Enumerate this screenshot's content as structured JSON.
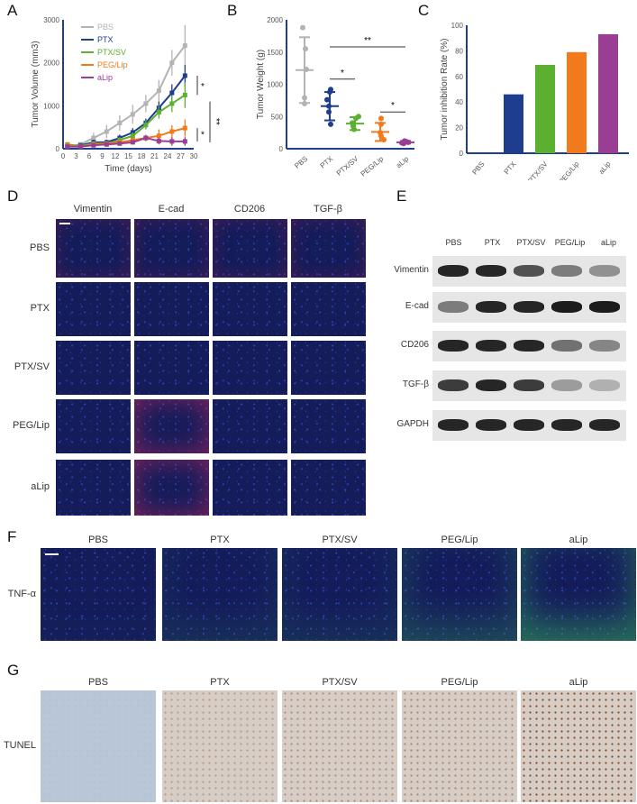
{
  "panels": {
    "a": "A",
    "b": "B",
    "c": "C",
    "d": "D",
    "e": "E",
    "f": "F",
    "g": "G"
  },
  "colors": {
    "PBS": "#b3b3b3",
    "PTX": "#1f3d8f",
    "PTX/SV": "#5bb030",
    "PEG/Lip": "#f07a1c",
    "aLip": "#9a3d94"
  },
  "chart_data": [
    {
      "type": "line",
      "title": "",
      "xlabel": "Time (days)",
      "ylabel": "Tumor Volume (mm3)",
      "xlim": [
        0,
        30
      ],
      "ylim": [
        0,
        3000
      ],
      "xticks": [
        0,
        3,
        6,
        9,
        12,
        15,
        18,
        21,
        24,
        27,
        30
      ],
      "yticks": [
        0,
        1000,
        2000,
        3000
      ],
      "x": [
        1,
        4,
        7,
        10,
        13,
        16,
        19,
        22,
        25,
        28
      ],
      "series": [
        {
          "name": "PBS",
          "values": [
            50,
            100,
            250,
            400,
            600,
            800,
            1050,
            1350,
            2000,
            2400
          ],
          "err": [
            30,
            40,
            120,
            150,
            180,
            220,
            200,
            250,
            300,
            480
          ]
        },
        {
          "name": "PTX",
          "values": [
            50,
            80,
            150,
            150,
            250,
            380,
            600,
            950,
            1300,
            1700
          ],
          "err": [
            30,
            30,
            60,
            60,
            80,
            100,
            100,
            150,
            200,
            250
          ]
        },
        {
          "name": "PTX/SV",
          "values": [
            100,
            60,
            120,
            120,
            200,
            300,
            550,
            850,
            1050,
            1250
          ],
          "err": [
            40,
            30,
            50,
            50,
            70,
            80,
            100,
            150,
            200,
            300
          ]
        },
        {
          "name": "PEG/Lip",
          "values": [
            80,
            50,
            100,
            120,
            150,
            200,
            250,
            300,
            400,
            480
          ],
          "err": [
            30,
            30,
            40,
            50,
            60,
            60,
            80,
            150,
            150,
            200
          ]
        },
        {
          "name": "aLip",
          "values": [
            50,
            50,
            80,
            100,
            120,
            150,
            250,
            180,
            170,
            170
          ],
          "err": [
            30,
            30,
            30,
            40,
            40,
            50,
            60,
            80,
            100,
            100
          ]
        }
      ],
      "legend": "top-left",
      "annotations": [
        "*",
        "**",
        "*"
      ]
    },
    {
      "type": "scatter",
      "xlabel": "",
      "ylabel": "Tumor Weight (g)",
      "ylim": [
        0,
        2000
      ],
      "yticks": [
        0,
        500,
        1000,
        1500,
        2000
      ],
      "categories": [
        "PBS",
        "PTX",
        "PTX/SV",
        "PEG/Lip",
        "aLip"
      ],
      "mean": [
        1220,
        660,
        390,
        260,
        100
      ],
      "sd": [
        510,
        220,
        100,
        140,
        20
      ],
      "points": [
        [
          1880,
          1550,
          1230,
          790,
          700
        ],
        [
          920,
          880,
          760,
          660,
          570,
          380
        ],
        [
          500,
          470,
          400,
          350,
          300
        ],
        [
          470,
          380,
          250,
          200,
          140
        ],
        [
          120,
          110,
          100,
          90,
          80
        ]
      ],
      "annotations": [
        "**",
        "*",
        "*"
      ]
    },
    {
      "type": "bar",
      "xlabel": "",
      "ylabel": "Tumor inhibition Rate (%)",
      "ylim": [
        0,
        100
      ],
      "yticks": [
        0,
        20,
        40,
        60,
        80,
        100
      ],
      "categories": [
        "PBS",
        "PTX",
        "PTX/SV",
        "PEG/Lip",
        "aLip"
      ],
      "values": [
        0,
        46,
        69,
        79,
        93
      ]
    }
  ],
  "d": {
    "columns": [
      "Vimentin",
      "E-cad",
      "CD206",
      "TGF-β"
    ],
    "rows": [
      "PBS",
      "PTX",
      "PTX/SV",
      "PEG/Lip",
      "aLip"
    ]
  },
  "e": {
    "columns": [
      "PBS",
      "PTX",
      "PTX/SV",
      "PEG/Lip",
      "aLip"
    ],
    "rows": [
      "Vimentin",
      "E-cad",
      "CD206",
      "TGF-β",
      "GAPDH"
    ],
    "intensity": [
      [
        0.9,
        0.9,
        0.7,
        0.5,
        0.4
      ],
      [
        0.5,
        0.9,
        0.9,
        0.95,
        0.95
      ],
      [
        0.9,
        0.9,
        0.9,
        0.55,
        0.45
      ],
      [
        0.8,
        0.9,
        0.8,
        0.35,
        0.25
      ],
      [
        0.9,
        0.9,
        0.9,
        0.9,
        0.9
      ]
    ]
  },
  "f": {
    "columns": [
      "PBS",
      "PTX",
      "PTX/SV",
      "PEG/Lip",
      "aLip"
    ],
    "row": "TNF-α",
    "green": [
      0.05,
      0.2,
      0.2,
      0.45,
      0.8
    ]
  },
  "g": {
    "columns": [
      "PBS",
      "PTX",
      "PTX/SV",
      "PEG/Lip",
      "aLip"
    ],
    "row": "TUNEL",
    "brown": [
      0.05,
      0.35,
      0.45,
      0.5,
      0.9
    ]
  }
}
